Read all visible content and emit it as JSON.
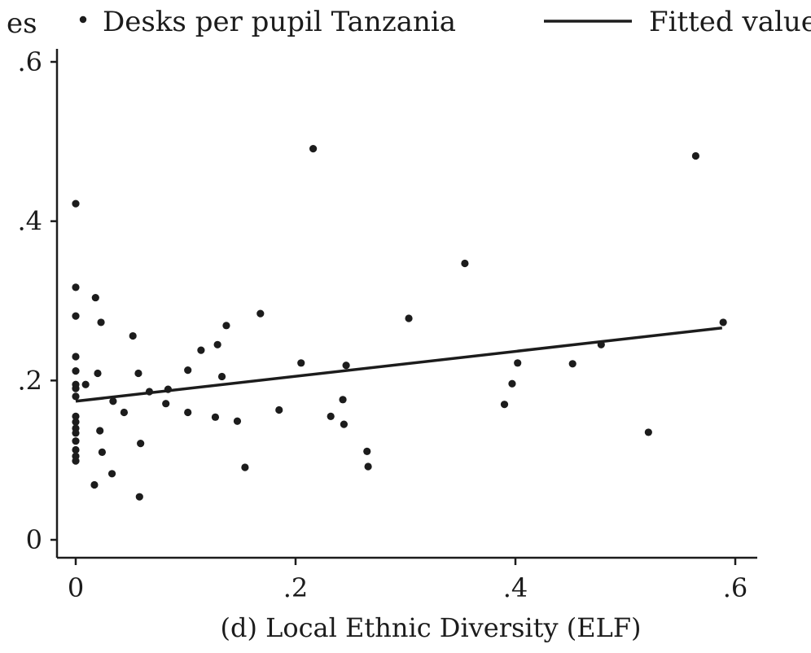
{
  "chart_data": {
    "type": "scatter",
    "xlabel": "(d) Local Ethnic Diversity (ELF)",
    "ylabel_fragment": "es",
    "xlim": [
      0,
      0.6
    ],
    "ylim": [
      0,
      0.6
    ],
    "xticks": [
      0,
      0.2,
      0.4,
      0.6
    ],
    "xtick_labels": [
      "0",
      ".2",
      ".4",
      ".6"
    ],
    "yticks": [
      0,
      0.2,
      0.4,
      0.6
    ],
    "ytick_labels": [
      "0",
      ".2",
      ".4",
      ".6"
    ],
    "legend_position": "top",
    "series": [
      {
        "name": "Desks per pupil Tanzania",
        "kind": "scatter",
        "color": "#1c1c1c",
        "points": [
          [
            0.0,
            0.422
          ],
          [
            0.0,
            0.317
          ],
          [
            0.0,
            0.281
          ],
          [
            0.0,
            0.23
          ],
          [
            0.0,
            0.212
          ],
          [
            0.0,
            0.195
          ],
          [
            0.0,
            0.19
          ],
          [
            0.0,
            0.18
          ],
          [
            0.0,
            0.155
          ],
          [
            0.0,
            0.148
          ],
          [
            0.0,
            0.14
          ],
          [
            0.0,
            0.134
          ],
          [
            0.0,
            0.124
          ],
          [
            0.0,
            0.113
          ],
          [
            0.0,
            0.105
          ],
          [
            0.0,
            0.099
          ],
          [
            0.009,
            0.195
          ],
          [
            0.018,
            0.304
          ],
          [
            0.02,
            0.209
          ],
          [
            0.022,
            0.137
          ],
          [
            0.023,
            0.273
          ],
          [
            0.024,
            0.11
          ],
          [
            0.017,
            0.069
          ],
          [
            0.034,
            0.174
          ],
          [
            0.033,
            0.083
          ],
          [
            0.044,
            0.16
          ],
          [
            0.052,
            0.256
          ],
          [
            0.057,
            0.209
          ],
          [
            0.059,
            0.121
          ],
          [
            0.058,
            0.054
          ],
          [
            0.067,
            0.186
          ],
          [
            0.082,
            0.171
          ],
          [
            0.084,
            0.189
          ],
          [
            0.102,
            0.213
          ],
          [
            0.102,
            0.16
          ],
          [
            0.114,
            0.238
          ],
          [
            0.127,
            0.154
          ],
          [
            0.129,
            0.245
          ],
          [
            0.133,
            0.205
          ],
          [
            0.137,
            0.269
          ],
          [
            0.147,
            0.149
          ],
          [
            0.154,
            0.091
          ],
          [
            0.168,
            0.284
          ],
          [
            0.185,
            0.163
          ],
          [
            0.205,
            0.222
          ],
          [
            0.216,
            0.491
          ],
          [
            0.232,
            0.155
          ],
          [
            0.243,
            0.176
          ],
          [
            0.244,
            0.145
          ],
          [
            0.246,
            0.219
          ],
          [
            0.265,
            0.111
          ],
          [
            0.266,
            0.092
          ],
          [
            0.303,
            0.278
          ],
          [
            0.354,
            0.347
          ],
          [
            0.39,
            0.17
          ],
          [
            0.397,
            0.196
          ],
          [
            0.402,
            0.222
          ],
          [
            0.452,
            0.221
          ],
          [
            0.478,
            0.245
          ],
          [
            0.521,
            0.135
          ],
          [
            0.564,
            0.482
          ],
          [
            0.589,
            0.273
          ]
        ]
      },
      {
        "name": "Fitted values",
        "kind": "line",
        "color": "#1c1c1c",
        "points": [
          [
            0.0,
            0.174
          ],
          [
            0.588,
            0.266
          ]
        ]
      }
    ]
  }
}
